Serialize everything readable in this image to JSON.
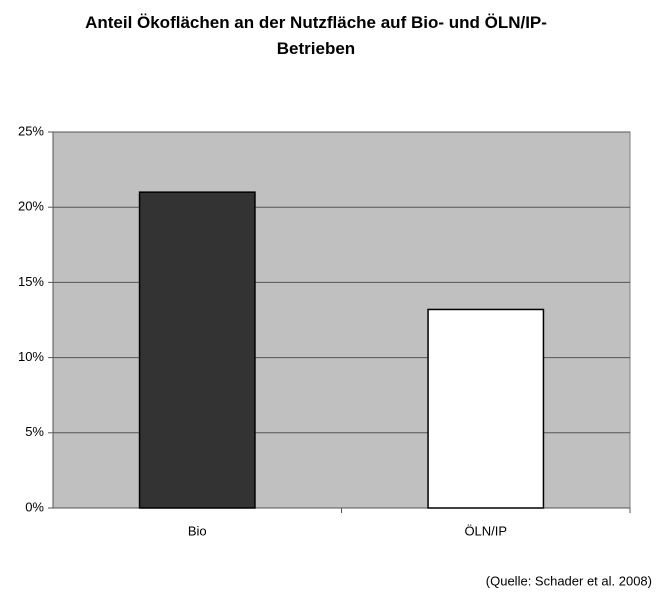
{
  "chart_data": {
    "type": "bar",
    "title": "Anteil Ökoflächen an der Nutzfläche auf Bio- und ÖLN/IP-Betrieben",
    "categories": [
      "Bio",
      "ÖLN/IP"
    ],
    "values": [
      21,
      13.2
    ],
    "colors": [
      "#333333",
      "#ffffff"
    ],
    "ylim": [
      0,
      25
    ],
    "yticks": [
      {
        "value": 0,
        "label": "0%"
      },
      {
        "value": 5,
        "label": "5%"
      },
      {
        "value": 10,
        "label": "10%"
      },
      {
        "value": 15,
        "label": "15%"
      },
      {
        "value": 20,
        "label": "20%"
      },
      {
        "value": 25,
        "label": "25%"
      }
    ],
    "grid": true,
    "source": "(Quelle: Schader et al. 2008)"
  }
}
